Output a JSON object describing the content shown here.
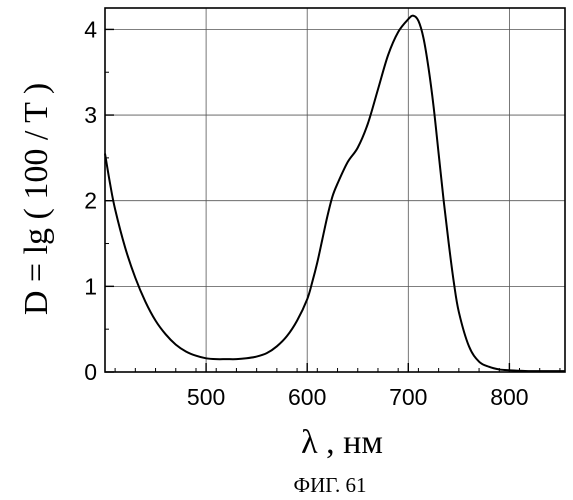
{
  "chart_data": {
    "type": "line",
    "xlabel": "λ , нм",
    "ylabel": "D = lg ( 100 / T )",
    "caption": "ФИГ. 61",
    "xlim": [
      400,
      855
    ],
    "ylim": [
      0,
      4.25
    ],
    "xticks": [
      500,
      600,
      700,
      800
    ],
    "yticks": [
      0,
      1,
      2,
      3,
      4
    ],
    "grid": true,
    "series": [
      {
        "x": [
          400,
          405,
          410,
          420,
          430,
          440,
          450,
          460,
          470,
          480,
          490,
          500,
          510,
          520,
          530,
          540,
          550,
          560,
          570,
          580,
          590,
          600,
          605,
          610,
          615,
          620,
          625,
          630,
          640,
          650,
          660,
          670,
          680,
          690,
          700,
          705,
          710,
          715,
          720,
          725,
          730,
          735,
          740,
          745,
          750,
          760,
          770,
          780,
          790,
          800,
          810,
          820,
          830,
          840,
          855
        ],
        "y": [
          2.55,
          2.2,
          1.9,
          1.45,
          1.1,
          0.82,
          0.6,
          0.44,
          0.32,
          0.24,
          0.19,
          0.16,
          0.15,
          0.15,
          0.15,
          0.16,
          0.18,
          0.22,
          0.3,
          0.42,
          0.6,
          0.85,
          1.05,
          1.28,
          1.55,
          1.82,
          2.05,
          2.2,
          2.45,
          2.62,
          2.9,
          3.3,
          3.7,
          3.97,
          4.12,
          4.16,
          4.1,
          3.9,
          3.55,
          3.1,
          2.55,
          2.0,
          1.5,
          1.05,
          0.7,
          0.3,
          0.12,
          0.06,
          0.03,
          0.02,
          0.015,
          0.01,
          0.01,
          0.01,
          0.01
        ]
      }
    ]
  }
}
